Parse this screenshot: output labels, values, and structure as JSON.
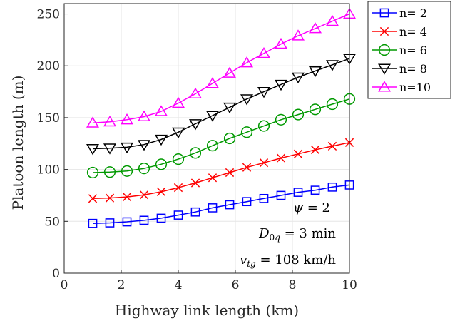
{
  "chart_data": {
    "type": "line",
    "xlabel": "Highway link length (km)",
    "ylabel": "Platoon length (m)",
    "xlim": [
      0,
      10
    ],
    "ylim": [
      0,
      260
    ],
    "xticks": [
      "0",
      "2",
      "4",
      "6",
      "8",
      "10"
    ],
    "yticks": [
      "0",
      "50",
      "100",
      "150",
      "200",
      "250"
    ],
    "grid": true,
    "legend_position": "outside-top-right",
    "x": [
      1.0,
      1.6,
      2.2,
      2.8,
      3.4,
      4.0,
      4.6,
      5.2,
      5.8,
      6.4,
      7.0,
      7.6,
      8.2,
      8.8,
      9.4,
      10.0
    ],
    "series": [
      {
        "name": "n= 2",
        "color": "#0000ff",
        "marker": "square",
        "values": [
          48,
          48.5,
          49.5,
          51,
          53,
          56,
          59,
          63,
          66,
          69,
          72,
          75,
          78,
          80,
          83,
          85
        ]
      },
      {
        "name": "n= 4",
        "color": "#ff0000",
        "marker": "x",
        "values": [
          72,
          72.5,
          73.5,
          75.5,
          78.5,
          82.5,
          87,
          92,
          97,
          102,
          106.5,
          111,
          115,
          119,
          122.5,
          126
        ]
      },
      {
        "name": "n= 6",
        "color": "#009900",
        "marker": "circle",
        "values": [
          97,
          97.5,
          98.5,
          101,
          105,
          110,
          116,
          123,
          130,
          136,
          142,
          148,
          153,
          158,
          163,
          168
        ]
      },
      {
        "name": "n= 8",
        "color": "#000000",
        "marker": "triangle-down",
        "values": [
          120,
          120.5,
          121.5,
          124,
          129,
          136,
          144,
          152,
          160,
          168,
          175,
          182,
          189,
          195,
          201,
          207
        ]
      },
      {
        "name": "n=10",
        "color": "#ff00ff",
        "marker": "triangle-up",
        "values": [
          145,
          146,
          148,
          151,
          156,
          164,
          173,
          183,
          193,
          203,
          212,
          221,
          229,
          236,
          243,
          250
        ]
      }
    ],
    "annotations": [
      "ψ = 2",
      "D0q = 3 min",
      "vtg = 108 km/h"
    ]
  }
}
